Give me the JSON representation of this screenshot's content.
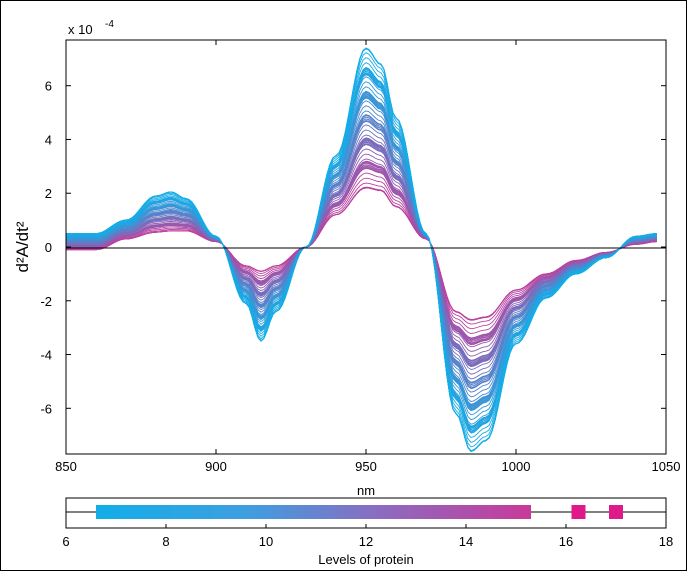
{
  "chart_data": [
    {
      "type": "line",
      "title": "",
      "xlabel": "nm",
      "ylabel": "d²A/dt²",
      "exponent_label": "x 10",
      "exponent_power": "-4",
      "xlim": [
        850,
        1050
      ],
      "ylim": [
        -7.7,
        7.7
      ],
      "x_ticks": [
        "850",
        "900",
        "950",
        "1000",
        "1050"
      ],
      "y_ticks": [
        "-6",
        "-4",
        "-2",
        "0",
        "2",
        "4",
        "6"
      ],
      "grid": false,
      "colors": {
        "low_protein": "#12aee8",
        "high_protein": "#c83a9a",
        "zero_line": "#000000"
      },
      "series_count": 90,
      "color_mapped_to": "Levels of protein",
      "envelope": {
        "x": [
          850,
          860,
          870,
          880,
          885,
          890,
          900,
          910,
          915,
          920,
          930,
          940,
          950,
          955,
          960,
          970,
          980,
          985,
          990,
          1000,
          1010,
          1020,
          1030,
          1040,
          1047
        ],
        "max_curve": [
          0.5,
          0.5,
          1.0,
          1.9,
          2.05,
          1.8,
          0.4,
          -2.1,
          -3.5,
          -2.4,
          0.0,
          3.4,
          7.4,
          6.8,
          4.8,
          0.5,
          -6.2,
          -7.6,
          -7.2,
          -3.6,
          -1.9,
          -1.0,
          -0.4,
          0.4,
          0.5
        ],
        "min_curve": [
          -0.1,
          -0.1,
          0.3,
          0.55,
          0.6,
          0.6,
          0.2,
          -0.7,
          -0.9,
          -0.7,
          0.0,
          1.2,
          2.2,
          2.1,
          1.5,
          0.3,
          -2.4,
          -2.7,
          -2.6,
          -1.6,
          -1.0,
          -0.5,
          -0.2,
          0.1,
          0.2
        ]
      }
    },
    {
      "type": "scatter",
      "xlabel": "Levels of protein",
      "xlim": [
        6,
        18
      ],
      "x_ticks": [
        "6",
        "8",
        "10",
        "12",
        "14",
        "16",
        "18"
      ],
      "main_range": [
        6.6,
        15.3
      ],
      "points": [
        16.25,
        17.0
      ],
      "colors": {
        "low": "#12aee8",
        "high": "#e0198b"
      }
    }
  ]
}
